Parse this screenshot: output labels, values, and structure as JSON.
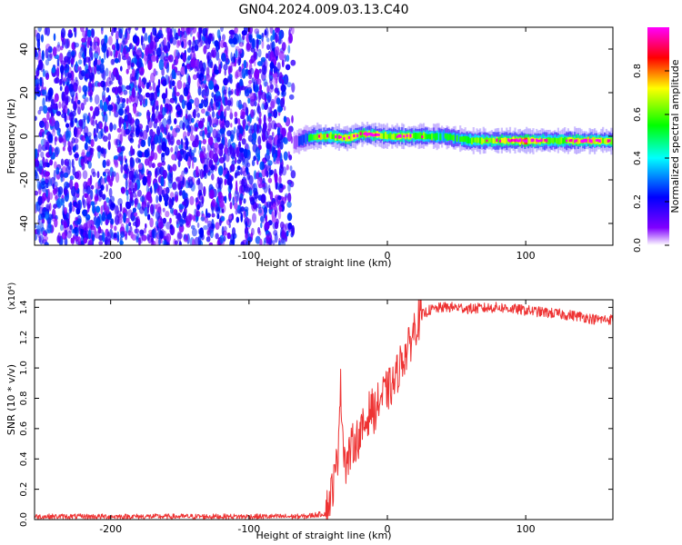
{
  "title": "GN04.2024.009.03.13.C40",
  "chart_data": [
    {
      "type": "heatmap",
      "xlabel": "Height of straight line (km)",
      "ylabel": "Frequency (Hz)",
      "xlim": [
        -255,
        163
      ],
      "ylim": [
        -50,
        50
      ],
      "xticks": [
        -200,
        -100,
        0,
        100
      ],
      "yticks": [
        -40,
        -20,
        0,
        20,
        40
      ],
      "colorbar": {
        "label": "Normalized spectral amplitude",
        "range": [
          0,
          1
        ],
        "ticks": [
          "0.0",
          "0.2",
          "0.4",
          "0.6",
          "0.8"
        ],
        "tick_values": [
          0.0,
          0.2,
          0.4,
          0.6,
          0.8
        ],
        "colormap": [
          "#ffffff",
          "#8000ff",
          "#0000ff",
          "#00ffff",
          "#00ff00",
          "#ffff00",
          "#ff0000",
          "#ff00ff"
        ]
      },
      "noise_region": {
        "x_range": [
          -255,
          -68
        ],
        "typical_amplitude": 0.15
      },
      "signal_band": {
        "points": [
          {
            "x": -68,
            "freq": -3,
            "amplitude": 0.25
          },
          {
            "x": -60,
            "freq": -1,
            "amplitude": 0.45
          },
          {
            "x": -50,
            "freq": 0,
            "amplitude": 0.85
          },
          {
            "x": -40,
            "freq": 0,
            "amplitude": 0.8
          },
          {
            "x": -30,
            "freq": -1,
            "amplitude": 0.85
          },
          {
            "x": -20,
            "freq": 1,
            "amplitude": 0.8
          },
          {
            "x": -15,
            "freq": 1,
            "amplitude": 0.9
          },
          {
            "x": 0,
            "freq": 0,
            "amplitude": 0.75
          },
          {
            "x": 10,
            "freq": 0,
            "amplitude": 0.85
          },
          {
            "x": 40,
            "freq": 0,
            "amplitude": 0.6
          },
          {
            "x": 60,
            "freq": -2,
            "amplitude": 0.7
          },
          {
            "x": 100,
            "freq": -2,
            "amplitude": 0.95
          },
          {
            "x": 120,
            "freq": -2,
            "amplitude": 0.7
          },
          {
            "x": 140,
            "freq": -2,
            "amplitude": 0.9
          },
          {
            "x": 163,
            "freq": -2,
            "amplitude": 0.8
          }
        ]
      }
    },
    {
      "type": "line",
      "xlabel": "Height of straight line (km)",
      "ylabel": "SNR (10 * v/v)",
      "yscale_label": "(x10⁴)",
      "xlim": [
        -255,
        163
      ],
      "ylim": [
        0,
        1.45
      ],
      "xticks": [
        -200,
        -100,
        0,
        100
      ],
      "yticks": [
        "0.0",
        "0.2",
        "0.4",
        "0.6",
        "0.8",
        "1.0",
        "1.2",
        "1.4"
      ],
      "ytick_values": [
        0.0,
        0.2,
        0.4,
        0.6,
        0.8,
        1.0,
        1.2,
        1.4
      ],
      "line_color": "#ee3333",
      "series": [
        {
          "x": [
            -255,
            -150,
            -60,
            -45,
            -42,
            -38,
            -36,
            -34,
            -32,
            -30,
            -25,
            -20,
            -15,
            -12,
            -10,
            -5,
            0,
            5,
            10,
            15,
            20,
            25,
            30,
            40,
            50,
            60,
            80,
            100,
            120,
            140,
            150,
            163
          ],
          "values": [
            0.02,
            0.02,
            0.02,
            0.04,
            0.12,
            0.28,
            0.4,
            0.9,
            0.55,
            0.35,
            0.5,
            0.55,
            0.65,
            0.75,
            0.7,
            0.8,
            0.85,
            0.9,
            1.05,
            1.12,
            1.28,
            1.35,
            1.38,
            1.4,
            1.4,
            1.39,
            1.4,
            1.38,
            1.36,
            1.34,
            1.32,
            1.32
          ]
        }
      ]
    }
  ]
}
